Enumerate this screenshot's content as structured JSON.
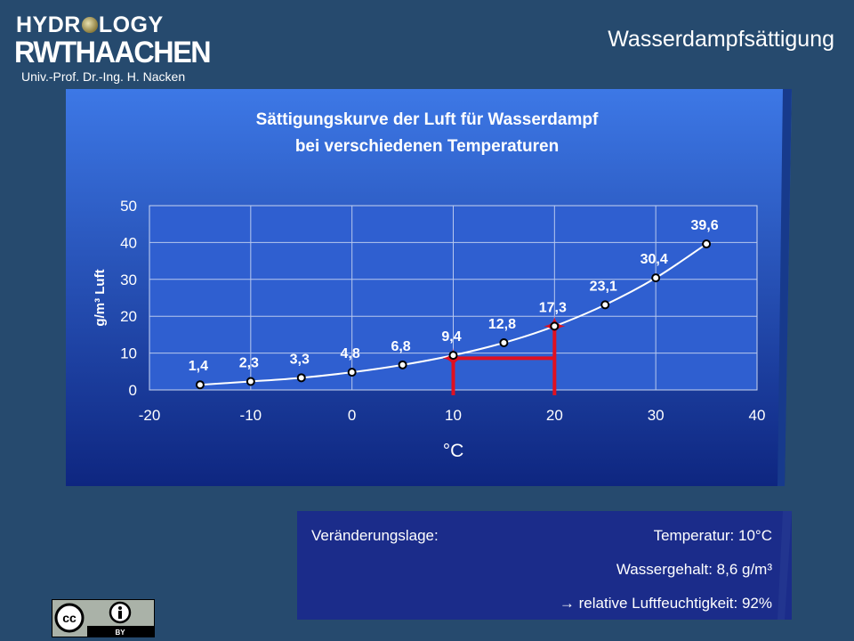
{
  "header": {
    "logo_line1_a": "HYDR",
    "logo_line1_b": "LOGY",
    "logo_line2": "RWTHAACHEN",
    "logo_sub": "Univ.-Prof. Dr.-Ing. H. Nacken",
    "slide_title": "Wasserdampfsättigung"
  },
  "colors": {
    "background": "#264a6e",
    "panel_top": "#3d78e6",
    "panel_bottom": "#0e2680",
    "curve": "#ffffff",
    "marker_lines": "#e01020"
  },
  "chart_data": {
    "type": "line",
    "title": [
      "Sättigungskurve der Luft für Wasserdampf",
      "bei verschiedenen Temperaturen"
    ],
    "xlabel": "°C",
    "ylabel": "g/m³ Luft",
    "xlim": [
      -20,
      40
    ],
    "ylim": [
      0,
      50
    ],
    "x_ticks": [
      -20,
      -10,
      0,
      10,
      20,
      30,
      40
    ],
    "y_ticks": [
      0,
      10,
      20,
      30,
      40,
      50
    ],
    "grid": true,
    "series": [
      {
        "x": [
          -15,
          -10,
          -5,
          0,
          5,
          10,
          15,
          20,
          25,
          30,
          35
        ],
        "y": [
          1.4,
          2.3,
          3.3,
          4.8,
          6.8,
          9.4,
          12.8,
          17.3,
          23.1,
          30.4,
          39.6
        ],
        "labels": [
          "1,4",
          "2,3",
          "3,3",
          "4,8",
          "6,8",
          "9,4",
          "12,8",
          "17,3",
          "23,1",
          "30,4",
          "39,6"
        ]
      }
    ],
    "annotations": {
      "vertical_lines_x": [
        10,
        20
      ],
      "horizontal_line": {
        "x": [
          10,
          20
        ],
        "y": 8.6
      },
      "cross_markers": [
        {
          "x": 10,
          "y": 8.6
        },
        {
          "x": 20,
          "y": 17.3
        }
      ]
    }
  },
  "info": {
    "label": "Veränderungslage:",
    "temperature": "Temperatur: 10°C",
    "water_content": "Wassergehalt: 8,6 g/m³",
    "humidity": "→ relative Luftfeuchtigkeit: 92%"
  },
  "license": {
    "cc": "cc",
    "by": "BY"
  }
}
